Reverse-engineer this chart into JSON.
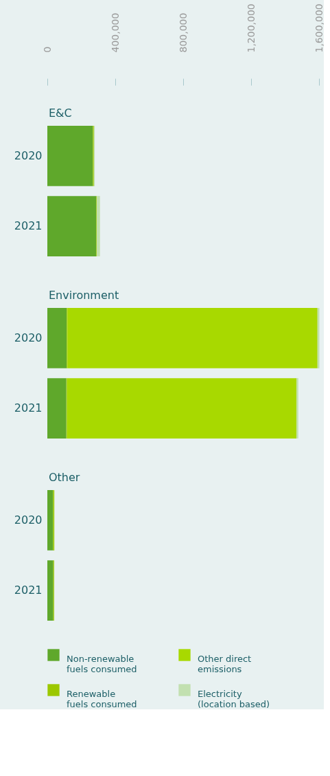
{
  "chart_data": [
    {
      "type": "bar",
      "orientation": "horizontal",
      "stacked": true,
      "title": "E&C",
      "categories": [
        "2020",
        "2021"
      ],
      "series": [
        {
          "name": "Non-renewable fuels consumed",
          "color": "#5fa82b",
          "values": [
            268000,
            288000
          ]
        },
        {
          "name": "Renewable fuels consumed",
          "color": "#9cc800",
          "values": [
            6000,
            4000
          ]
        },
        {
          "name": "Other direct emissions",
          "color": "#a8d900",
          "values": [
            null,
            null
          ]
        },
        {
          "name": "Electricity (location based)",
          "color": "#c2e0b0",
          "values": [
            5000,
            18000
          ]
        }
      ],
      "xlim": [
        0,
        1600000
      ],
      "legend": "bottom",
      "xticks": [
        0,
        {
          "value": 400000,
          "label": "400,000"
        },
        {
          "value": 800000,
          "label": "800,000"
        },
        {
          "value": 1200000,
          "label": "1,200,000"
        },
        {
          "value": 1600000,
          "label": "1,600,000"
        }
      ]
    },
    {
      "type": "bar",
      "orientation": "horizontal",
      "stacked": true,
      "title": "Environment",
      "categories": [
        "2020",
        "2021"
      ],
      "series": [
        {
          "color": "#5fa82b",
          "values": [
            114000,
            112000
          ]
        },
        {
          "color": "#9cc800",
          "values": [
            4000,
            4000
          ]
        },
        {
          "color": "#a8d900",
          "values": [
            1473000,
            1351000
          ]
        },
        {
          "color": "#c2e0b0",
          "values": [
            11000,
            11000
          ]
        }
      ],
      "xlim": [
        0,
        1600000
      ],
      "tick_labels": "y"
    },
    {
      "type": "bar",
      "orientation": "horizontal",
      "stacked": true,
      "title": "Other",
      "categories": [
        "2020",
        "2021"
      ],
      "series": [
        {
          "color": "#5fa82b",
          "values": [
            34000,
            35000
          ]
        },
        {
          "color": "#9cc800",
          "values": [
            7000,
            5000
          ]
        },
        {
          "color": "#a8d900",
          "values": [
            null,
            null
          ]
        },
        {
          "color": "#c2e0b0",
          "values": [
            null,
            null
          ]
        }
      ],
      "xlim": [
        0,
        1600000
      ],
      "tick_labels": "y"
    }
  ]
}
